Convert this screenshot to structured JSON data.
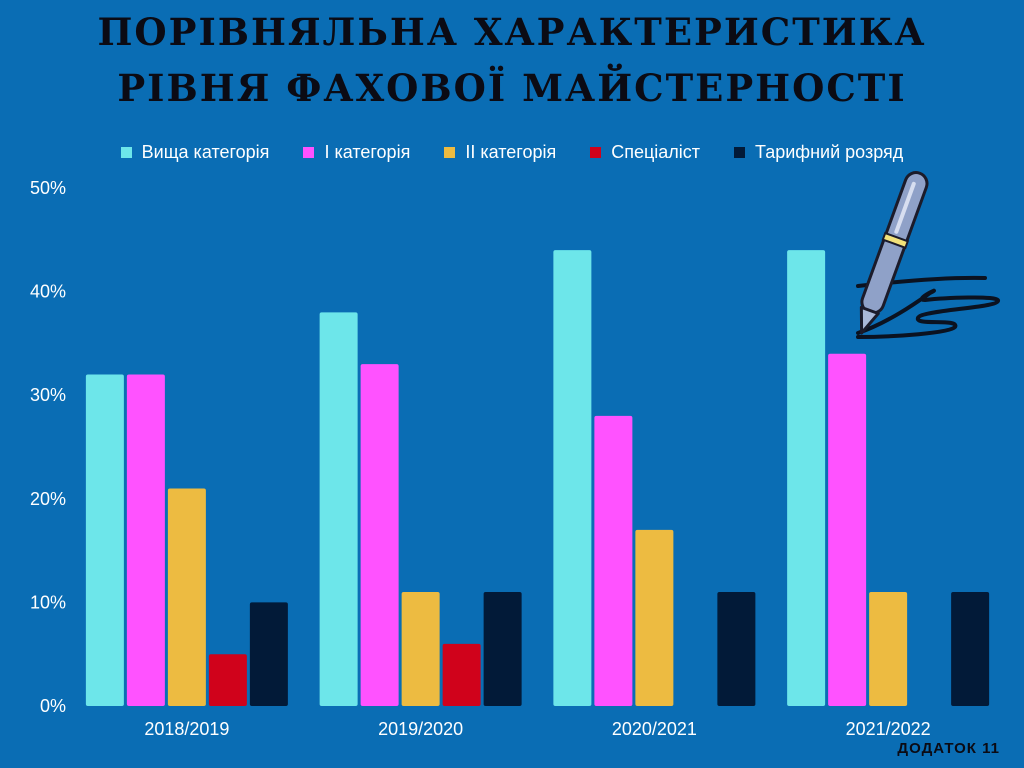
{
  "title_lines": [
    "ПОРІВНЯЛЬНА ХАРАКТЕРИСТИКА",
    "РІВНЯ ФАХОВОЇ МАЙСТЕРНОСТІ"
  ],
  "appendix_label": "ДОДАТОК 11",
  "decoration": {
    "icon": "pen-signature-icon"
  },
  "chart_data": {
    "type": "bar",
    "title": "ПОРІВНЯЛЬНА ХАРАКТЕРИСТИКА РІВНЯ ФАХОВОЇ МАЙСТЕРНОСТІ",
    "xlabel": "",
    "ylabel": "",
    "categories": [
      "2018/2019",
      "2019/2020",
      "2020/2021",
      "2021/2022"
    ],
    "ylim": [
      0,
      50
    ],
    "yticks": [
      "0%",
      "10%",
      "20%",
      "30%",
      "40%",
      "50%"
    ],
    "grid": false,
    "legend": "top",
    "series": [
      {
        "name": "Вища категорія",
        "color": "#6de6ea",
        "values": [
          32,
          38,
          44,
          44
        ]
      },
      {
        "name": "І категорія",
        "color": "#ff52ff",
        "values": [
          32,
          33,
          28,
          34
        ]
      },
      {
        "name": "ІІ категорія",
        "color": "#edbb41",
        "values": [
          21,
          11,
          17,
          11
        ]
      },
      {
        "name": "Спеціаліст",
        "color": "#d0021b",
        "values": [
          5,
          6,
          0,
          0
        ]
      },
      {
        "name": "Тарифний розряд",
        "color": "#021a38",
        "values": [
          10,
          11,
          11,
          11
        ]
      }
    ]
  }
}
